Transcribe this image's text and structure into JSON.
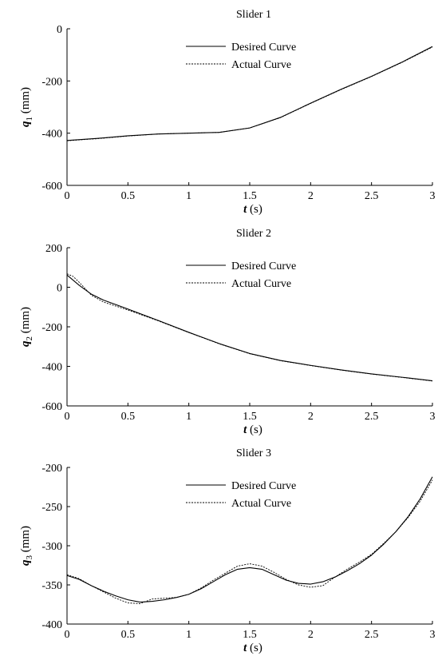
{
  "chart_data": [
    {
      "type": "line",
      "title": "Slider 1",
      "xlabel_var": "t",
      "xlabel_unit": "(s)",
      "ylabel_var": "q",
      "ylabel_sub": "1",
      "ylabel_unit": "(mm)",
      "xlim": [
        0,
        3
      ],
      "ylim": [
        -600,
        0
      ],
      "xticks": [
        0,
        0.5,
        1,
        1.5,
        2,
        2.5,
        3
      ],
      "yticks": [
        -600,
        -400,
        -200,
        0
      ],
      "legend_position": "top-center",
      "series": [
        {
          "name": "Desired Curve",
          "style": "solid",
          "x": [
            0,
            0.25,
            0.5,
            0.75,
            1.0,
            1.25,
            1.5,
            1.75,
            2.0,
            2.25,
            2.5,
            2.75,
            3.0
          ],
          "y": [
            -428,
            -420,
            -410,
            -403,
            -400,
            -397,
            -380,
            -340,
            -285,
            -232,
            -182,
            -128,
            -68
          ]
        },
        {
          "name": "Actual Curve",
          "style": "dashed",
          "x": [
            0,
            0.25,
            0.5,
            0.75,
            1.0,
            1.25,
            1.5,
            1.75,
            2.0,
            2.25,
            2.5,
            2.75,
            3.0
          ],
          "y": [
            -429,
            -421,
            -411,
            -403,
            -400,
            -397,
            -380,
            -341,
            -286,
            -233,
            -183,
            -129,
            -70
          ]
        }
      ]
    },
    {
      "type": "line",
      "title": "Slider 2",
      "xlabel_var": "t",
      "xlabel_unit": "(s)",
      "ylabel_var": "q",
      "ylabel_sub": "2",
      "ylabel_unit": "(mm)",
      "xlim": [
        0,
        3
      ],
      "ylim": [
        -600,
        200
      ],
      "xticks": [
        0,
        0.5,
        1,
        1.5,
        2,
        2.5,
        3
      ],
      "yticks": [
        -600,
        -400,
        -200,
        0,
        200
      ],
      "legend_position": "top-center",
      "series": [
        {
          "name": "Desired Curve",
          "style": "solid",
          "x": [
            0,
            0.1,
            0.2,
            0.3,
            0.5,
            0.75,
            1.0,
            1.25,
            1.5,
            1.75,
            2.0,
            2.25,
            2.5,
            2.75,
            3.0
          ],
          "y": [
            62,
            10,
            -35,
            -65,
            -110,
            -168,
            -228,
            -285,
            -335,
            -370,
            -395,
            -418,
            -438,
            -455,
            -473
          ]
        },
        {
          "name": "Actual Curve",
          "style": "dashed",
          "x": [
            0,
            0.05,
            0.1,
            0.2,
            0.3,
            0.5,
            0.75,
            1.0,
            1.25,
            1.5,
            1.75,
            2.0,
            2.25,
            2.5,
            2.75,
            3.0
          ],
          "y": [
            68,
            55,
            25,
            -40,
            -75,
            -115,
            -170,
            -229,
            -286,
            -336,
            -371,
            -396,
            -419,
            -439,
            -456,
            -474
          ]
        }
      ]
    },
    {
      "type": "line",
      "title": "Slider 3",
      "xlabel_var": "t",
      "xlabel_unit": "(s)",
      "ylabel_var": "q",
      "ylabel_sub": "3",
      "ylabel_unit": "(mm)",
      "xlim": [
        0,
        3
      ],
      "ylim": [
        -400,
        -200
      ],
      "xticks": [
        0,
        0.5,
        1,
        1.5,
        2,
        2.5,
        3
      ],
      "yticks": [
        -400,
        -350,
        -300,
        -250,
        -200
      ],
      "legend_position": "top-center",
      "series": [
        {
          "name": "Desired Curve",
          "style": "solid",
          "x": [
            0,
            0.1,
            0.2,
            0.3,
            0.4,
            0.5,
            0.6,
            0.7,
            0.8,
            0.9,
            1.0,
            1.1,
            1.2,
            1.3,
            1.4,
            1.5,
            1.6,
            1.7,
            1.8,
            1.9,
            2.0,
            2.1,
            2.2,
            2.3,
            2.4,
            2.5,
            2.6,
            2.7,
            2.8,
            2.9,
            3.0
          ],
          "y": [
            -338,
            -343,
            -351,
            -358,
            -364,
            -369,
            -372,
            -371,
            -369,
            -366,
            -362,
            -355,
            -346,
            -337,
            -330,
            -328,
            -330,
            -337,
            -344,
            -348,
            -349,
            -346,
            -340,
            -332,
            -323,
            -312,
            -298,
            -282,
            -263,
            -240,
            -212
          ]
        },
        {
          "name": "Actual Curve",
          "style": "dashed",
          "x": [
            0,
            0.1,
            0.2,
            0.3,
            0.4,
            0.5,
            0.6,
            0.7,
            0.8,
            0.9,
            1.0,
            1.1,
            1.2,
            1.3,
            1.4,
            1.5,
            1.6,
            1.7,
            1.8,
            1.9,
            2.0,
            2.1,
            2.2,
            2.3,
            2.4,
            2.5,
            2.6,
            2.7,
            2.8,
            2.9,
            3.0
          ],
          "y": [
            -337,
            -342,
            -351,
            -359,
            -367,
            -373,
            -374,
            -368,
            -367,
            -366,
            -362,
            -354,
            -344,
            -335,
            -326,
            -323,
            -326,
            -334,
            -343,
            -350,
            -353,
            -351,
            -340,
            -330,
            -321,
            -311,
            -297,
            -282,
            -264,
            -243,
            -216
          ]
        }
      ]
    }
  ]
}
